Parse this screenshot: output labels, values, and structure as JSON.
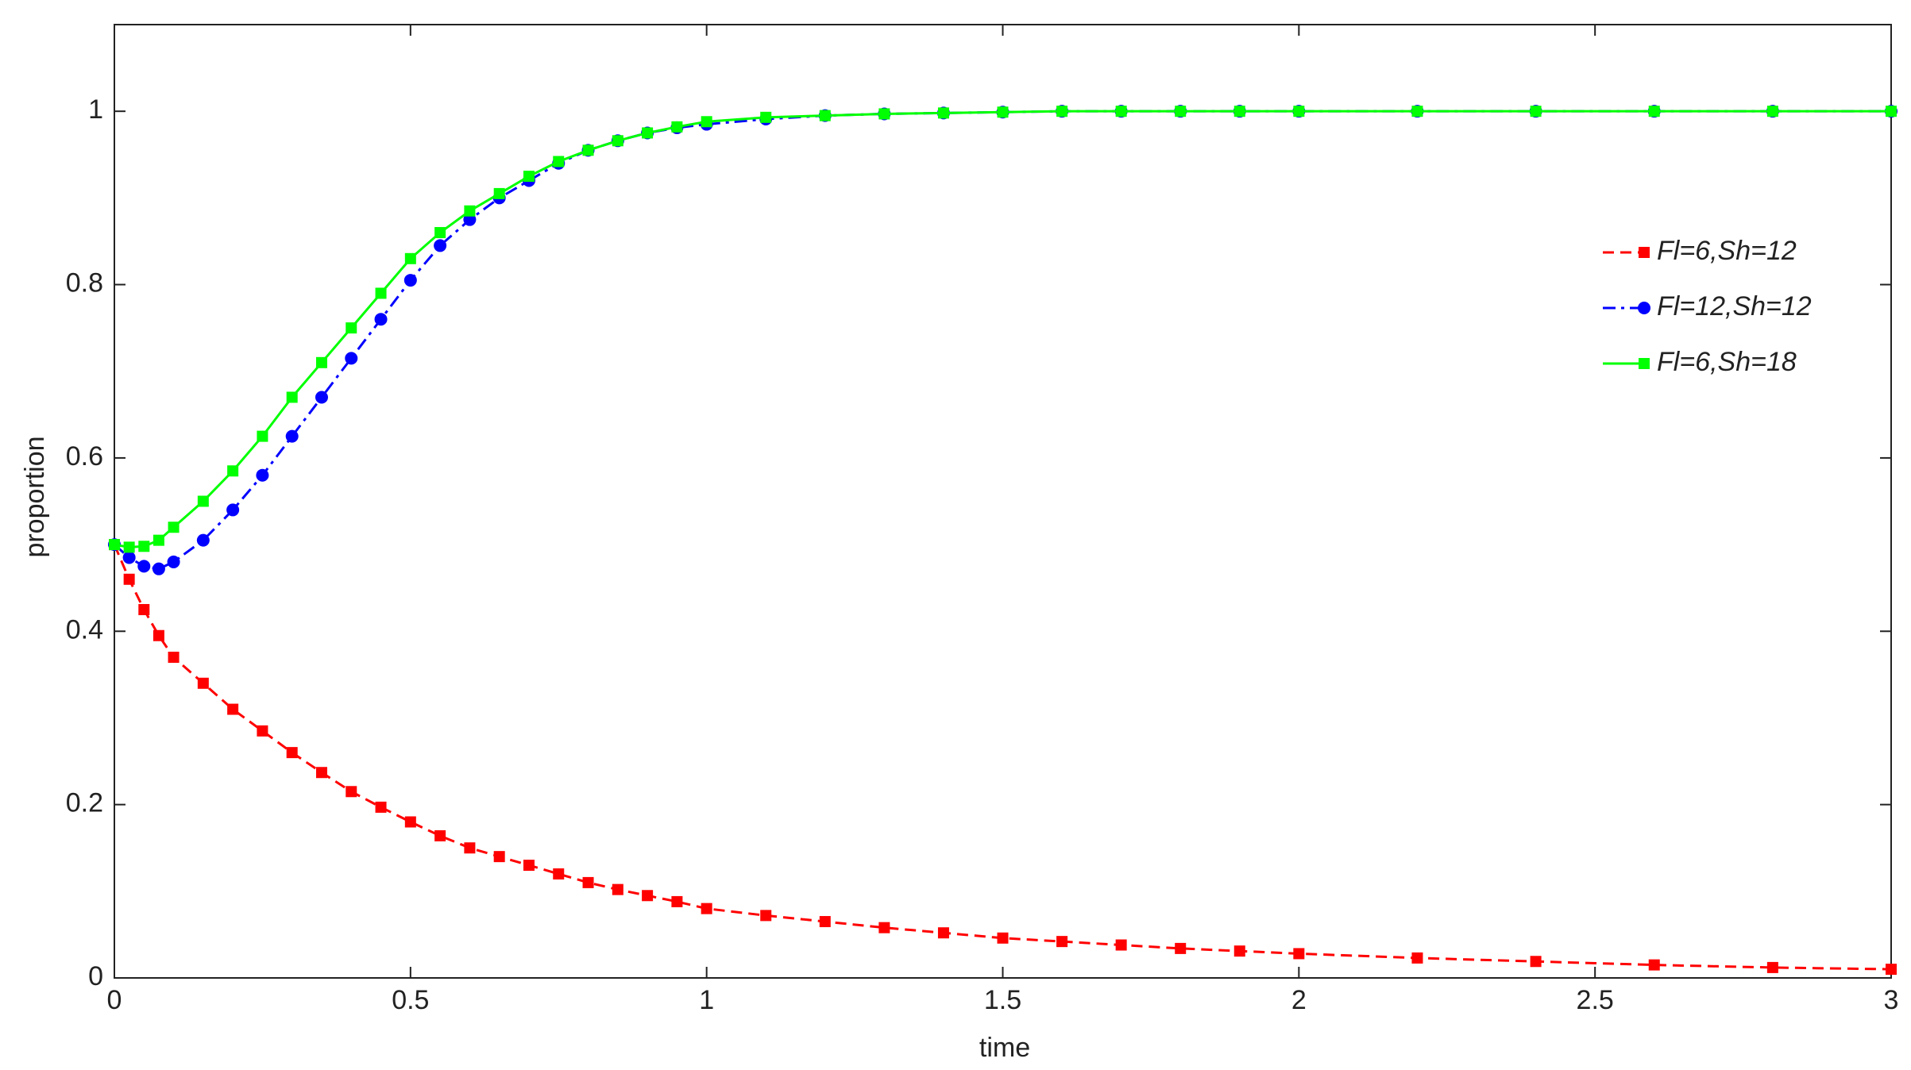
{
  "chart_data": {
    "type": "line",
    "x_label": "time",
    "y_label": "proportion",
    "x": [
      0,
      0.025,
      0.05,
      0.075,
      0.1,
      0.15,
      0.2,
      0.25,
      0.3,
      0.35,
      0.4,
      0.45,
      0.5,
      0.55,
      0.6,
      0.65,
      0.7,
      0.75,
      0.8,
      0.85,
      0.9,
      0.95,
      1,
      1.1,
      1.2,
      1.3,
      1.4,
      1.5,
      1.6,
      1.7,
      1.8,
      1.9,
      2,
      2.2,
      2.4,
      2.6,
      2.8,
      3
    ],
    "series": [
      {
        "name": "Fl=6,Sh=12",
        "color": "#ff0000",
        "marker": "square",
        "dash": "dashed",
        "values": [
          0.5,
          0.46,
          0.425,
          0.395,
          0.37,
          0.34,
          0.31,
          0.285,
          0.26,
          0.237,
          0.215,
          0.197,
          0.18,
          0.164,
          0.15,
          0.14,
          0.13,
          0.12,
          0.11,
          0.102,
          0.095,
          0.088,
          0.08,
          0.072,
          0.065,
          0.058,
          0.052,
          0.046,
          0.042,
          0.038,
          0.034,
          0.031,
          0.028,
          0.023,
          0.019,
          0.015,
          0.012,
          0.01
        ]
      },
      {
        "name": "Fl=12,Sh=12",
        "color": "#0000ff",
        "marker": "circle",
        "dash": "dashdot",
        "values": [
          0.5,
          0.485,
          0.475,
          0.472,
          0.48,
          0.505,
          0.54,
          0.58,
          0.625,
          0.67,
          0.715,
          0.76,
          0.805,
          0.845,
          0.875,
          0.9,
          0.92,
          0.94,
          0.955,
          0.966,
          0.975,
          0.981,
          0.985,
          0.991,
          0.995,
          0.997,
          0.998,
          0.999,
          1,
          1,
          1,
          1,
          1,
          1,
          1,
          1,
          1,
          1
        ]
      },
      {
        "name": "Fl=6,Sh=18",
        "color": "#00ff00",
        "marker": "square",
        "dash": "solid",
        "values": [
          0.5,
          0.497,
          0.498,
          0.505,
          0.52,
          0.55,
          0.585,
          0.625,
          0.67,
          0.71,
          0.75,
          0.79,
          0.83,
          0.86,
          0.885,
          0.905,
          0.925,
          0.942,
          0.955,
          0.966,
          0.975,
          0.982,
          0.988,
          0.993,
          0.995,
          0.997,
          0.998,
          0.999,
          1,
          1,
          1,
          1,
          1,
          1,
          1,
          1,
          1,
          1
        ]
      }
    ],
    "xlim": [
      0,
      3
    ],
    "xticks": [
      0,
      0.5,
      1,
      1.5,
      2,
      2.5,
      3
    ],
    "ylim": [
      0,
      1.1
    ],
    "yticks": [
      0,
      0.2,
      0.4,
      0.6,
      0.8,
      1
    ],
    "grid": false,
    "legend": "upper right"
  }
}
